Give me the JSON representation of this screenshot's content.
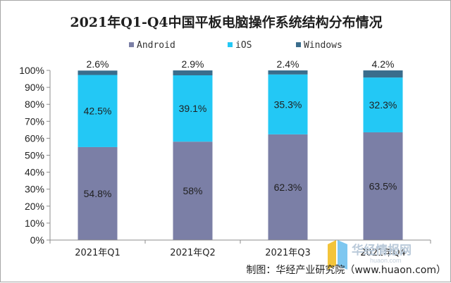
{
  "chart_data": {
    "type": "bar",
    "stacked": true,
    "percent": true,
    "title": "2021年Q1-Q4中国平板电脑操作系统结构分布情况",
    "categories": [
      "2021年Q1",
      "2021年Q2",
      "2021年Q3",
      "2021年Q4"
    ],
    "series": [
      {
        "name": "Android",
        "color": "#7b7fa6",
        "values": [
          54.8,
          58,
          62.3,
          63.5
        ],
        "labels": [
          "54.8%",
          "58%",
          "62.3%",
          "63.5%"
        ]
      },
      {
        "name": "iOS",
        "color": "#23c8f5",
        "values": [
          42.5,
          39.1,
          35.3,
          32.3
        ],
        "labels": [
          "42.5%",
          "39.1%",
          "35.3%",
          "32.3%"
        ]
      },
      {
        "name": "Windows",
        "color": "#3a6d8c",
        "values": [
          2.6,
          2.9,
          2.4,
          4.2
        ],
        "labels": [
          "2.6%",
          "2.9%",
          "2.4%",
          "4.2%"
        ]
      }
    ],
    "yticks": [
      "0%",
      "10%",
      "20%",
      "30%",
      "40%",
      "50%",
      "60%",
      "70%",
      "80%",
      "90%",
      "100%"
    ],
    "ylim": [
      0,
      100
    ],
    "legend_position": "top-center",
    "grid": false
  },
  "source": "制图：华经产业研究院（www.huaon.com）",
  "watermark": {
    "logo_text": "华经情报网",
    "logo_subtext": "huaon.com"
  }
}
